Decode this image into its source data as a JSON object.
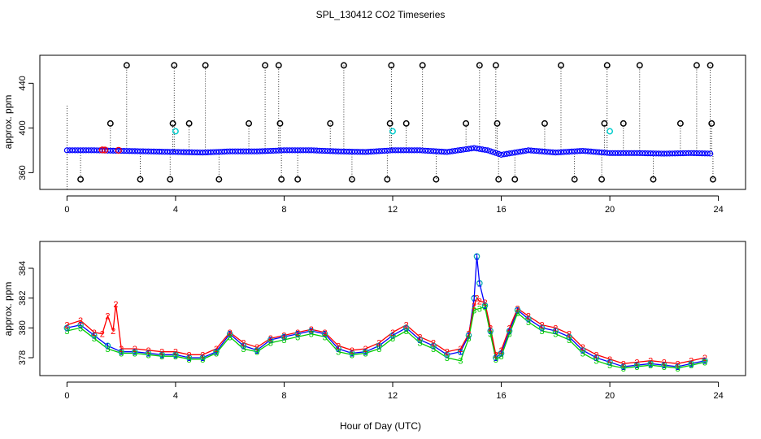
{
  "chart_data": {
    "title": "SPL_130412  CO2 Timeseries",
    "xlabel": "Hour of Day (UTC)",
    "x_ticks": [
      0,
      4,
      8,
      12,
      16,
      20,
      24
    ],
    "panels": [
      {
        "type": "scatter",
        "ylabel": "approx. ppm",
        "xlim": [
          -1,
          25
        ],
        "ylim": [
          345,
          465
        ],
        "y_ticks": [
          360,
          400,
          440
        ],
        "colors": {
          "raw": "#000000",
          "flagged": "#00cccc",
          "series": "#0000ff",
          "secondary": "#ff0000"
        },
        "baseline": {
          "x": [
            0,
            1,
            2,
            3,
            4,
            5,
            6,
            7,
            8,
            9,
            10,
            11,
            12,
            13,
            14,
            15,
            15.5,
            16,
            17,
            18,
            19,
            20,
            21,
            22,
            23,
            23.8
          ],
          "y": [
            380,
            380,
            379.5,
            379,
            378.5,
            378,
            379,
            379,
            380,
            380,
            379,
            378.5,
            380,
            380,
            378.5,
            382,
            380,
            376,
            380,
            378,
            379.5,
            377.5,
            377.5,
            377,
            377.5,
            377
          ]
        },
        "outliers": {
          "x": [
            0.5,
            1.6,
            2.2,
            2.7,
            3.8,
            3.9,
            3.95,
            4.5,
            5.1,
            5.6,
            6.7,
            7.3,
            7.8,
            7.85,
            7.9,
            8.5,
            9.7,
            10.2,
            10.5,
            11.8,
            11.9,
            11.95,
            12.5,
            13.1,
            13.6,
            14.7,
            15.2,
            15.8,
            15.85,
            15.9,
            16.5,
            17.6,
            18.2,
            18.7,
            19.7,
            19.8,
            19.9,
            20.5,
            21.1,
            21.6,
            22.6,
            23.2,
            23.7,
            23.75,
            23.8
          ],
          "y": [
            354,
            404,
            456,
            354,
            354,
            404,
            456,
            404,
            456,
            354,
            404,
            456,
            456,
            404,
            354,
            354,
            404,
            456,
            354,
            354,
            404,
            456,
            404,
            456,
            354,
            404,
            456,
            456,
            404,
            354,
            354,
            404,
            456,
            354,
            354,
            404,
            456,
            404,
            456,
            354,
            404,
            456,
            456,
            404,
            354
          ]
        },
        "flagged": {
          "x": [
            4.0,
            12.0,
            20.0
          ],
          "y": [
            397,
            397,
            397
          ]
        }
      },
      {
        "type": "line",
        "ylabel": "approx. ppm",
        "xlim": [
          -1,
          25
        ],
        "ylim": [
          376.8,
          385.8
        ],
        "y_ticks": [
          378,
          380,
          382,
          384
        ],
        "markers": [
          "1",
          "2",
          "3"
        ],
        "series": [
          {
            "color": "#0000ff",
            "x": [
              0,
              0.5,
              1,
              1.5,
              2,
              2.5,
              3,
              3.5,
              4,
              4.5,
              5,
              5.5,
              6,
              6.5,
              7,
              7.5,
              8,
              8.5,
              9,
              9.5,
              10,
              10.5,
              11,
              11.5,
              12,
              12.5,
              13,
              13.5,
              14,
              14.5,
              14.8,
              15.0,
              15.1,
              15.2,
              15.4,
              15.6,
              15.8,
              16.0,
              16.3,
              16.6,
              17.0,
              17.5,
              18.0,
              18.5,
              19.0,
              19.5,
              20.0,
              20.5,
              21.0,
              21.5,
              22.0,
              22.5,
              23.0,
              23.5
            ],
            "y": [
              380.0,
              380.2,
              379.5,
              378.8,
              378.4,
              378.4,
              378.3,
              378.2,
              378.2,
              378.0,
              378.0,
              378.4,
              379.6,
              378.8,
              378.5,
              379.2,
              379.4,
              379.6,
              379.8,
              379.6,
              378.6,
              378.3,
              378.4,
              378.8,
              379.5,
              380.0,
              379.2,
              378.8,
              378.2,
              378.4,
              379.5,
              382.0,
              384.8,
              383.0,
              381.5,
              379.8,
              378.0,
              378.3,
              379.8,
              381.2,
              380.6,
              380.0,
              379.8,
              379.4,
              378.5,
              378.0,
              377.7,
              377.4,
              377.5,
              377.6,
              377.5,
              377.4,
              377.6,
              377.8
            ]
          },
          {
            "color": "#ff0000",
            "x": [
              0,
              0.5,
              1,
              1.3,
              1.5,
              1.7,
              1.8,
              2,
              2.5,
              3,
              3.5,
              4,
              4.5,
              5,
              5.5,
              6,
              6.5,
              7,
              7.5,
              8,
              8.5,
              9,
              9.5,
              10,
              10.5,
              11,
              11.5,
              12,
              12.5,
              13,
              13.5,
              14,
              14.5,
              14.8,
              15.0,
              15.1,
              15.2,
              15.4,
              15.6,
              15.8,
              16.0,
              16.3,
              16.6,
              17.0,
              17.5,
              18.0,
              18.5,
              19.0,
              19.5,
              20.0,
              20.5,
              21.0,
              21.5,
              22.0,
              22.5,
              23.0,
              23.5
            ],
            "y": [
              380.2,
              380.5,
              379.7,
              379.6,
              380.8,
              379.8,
              381.6,
              378.6,
              378.6,
              378.5,
              378.4,
              378.4,
              378.2,
              378.2,
              378.6,
              379.7,
              379.0,
              378.7,
              379.3,
              379.5,
              379.7,
              379.9,
              379.7,
              378.8,
              378.5,
              378.6,
              379.0,
              379.7,
              380.2,
              379.4,
              379.0,
              378.4,
              378.6,
              379.6,
              381.5,
              382.0,
              381.8,
              381.7,
              380.0,
              378.2,
              378.5,
              380.0,
              381.3,
              380.8,
              380.2,
              380.0,
              379.6,
              378.7,
              378.2,
              377.9,
              377.6,
              377.7,
              377.8,
              377.7,
              377.6,
              377.8,
              378.0
            ]
          },
          {
            "color": "#00cc00",
            "x": [
              0,
              0.5,
              1,
              1.5,
              2,
              2.5,
              3,
              3.5,
              4,
              4.5,
              5,
              5.5,
              6,
              6.5,
              7,
              7.5,
              8,
              8.5,
              9,
              9.5,
              10,
              10.5,
              11,
              11.5,
              12,
              12.5,
              13,
              13.5,
              14,
              14.5,
              14.8,
              15.0,
              15.2,
              15.4,
              15.6,
              15.8,
              16.0,
              16.3,
              16.6,
              17.0,
              17.5,
              18.0,
              18.5,
              19.0,
              19.5,
              20.0,
              20.5,
              21.0,
              21.5,
              22.0,
              22.5,
              23.0,
              23.5
            ],
            "y": [
              379.8,
              380.0,
              379.3,
              378.6,
              378.3,
              378.3,
              378.2,
              378.1,
              378.1,
              377.9,
              377.9,
              378.3,
              379.4,
              378.6,
              378.4,
              379.0,
              379.2,
              379.4,
              379.6,
              379.4,
              378.4,
              378.2,
              378.3,
              378.6,
              379.3,
              379.8,
              379.0,
              378.6,
              378.0,
              377.8,
              379.3,
              381.2,
              381.3,
              381.4,
              379.6,
              377.9,
              378.1,
              379.6,
              381.0,
              380.4,
              379.8,
              379.6,
              379.2,
              378.3,
              377.8,
              377.5,
              377.3,
              377.4,
              377.5,
              377.4,
              377.3,
              377.5,
              377.7
            ]
          }
        ]
      }
    ]
  }
}
